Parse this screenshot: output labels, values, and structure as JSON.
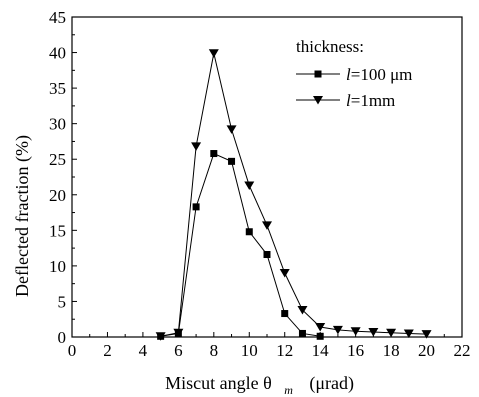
{
  "chart_data": {
    "type": "line",
    "xlabel": "Miscut angle θ",
    "xlabel_subscript": "m",
    "xlabel_unit": "(μrad)",
    "ylabel": "Deflected fraction (%)",
    "xlim": [
      0,
      22
    ],
    "ylim": [
      0,
      45
    ],
    "xticks": [
      0,
      2,
      4,
      6,
      8,
      10,
      12,
      14,
      16,
      18,
      20,
      22
    ],
    "yticks": [
      0,
      5,
      10,
      15,
      20,
      25,
      30,
      35,
      40,
      45
    ],
    "grid": false,
    "legend": {
      "title": "thickness:",
      "placement": "top-right"
    },
    "series": [
      {
        "label_prefix": "l",
        "label_suffix": "=100 μm",
        "marker": "square",
        "color": "#000000",
        "x": [
          5,
          6,
          7,
          8,
          9,
          10,
          11,
          12,
          13,
          14
        ],
        "y": [
          0.1,
          0.5,
          18.3,
          25.8,
          24.7,
          14.8,
          11.6,
          3.3,
          0.5,
          0.1
        ]
      },
      {
        "label_prefix": "l",
        "label_suffix": "=1mm",
        "marker": "triangle-down",
        "color": "#000000",
        "x": [
          5,
          6,
          7,
          8,
          9,
          10,
          11,
          12,
          13,
          14,
          15,
          16,
          17,
          18,
          19,
          20
        ],
        "y": [
          0.1,
          0.6,
          26.8,
          39.9,
          29.2,
          21.3,
          15.7,
          9.0,
          3.8,
          1.4,
          1.0,
          0.8,
          0.7,
          0.6,
          0.5,
          0.4
        ]
      }
    ]
  }
}
